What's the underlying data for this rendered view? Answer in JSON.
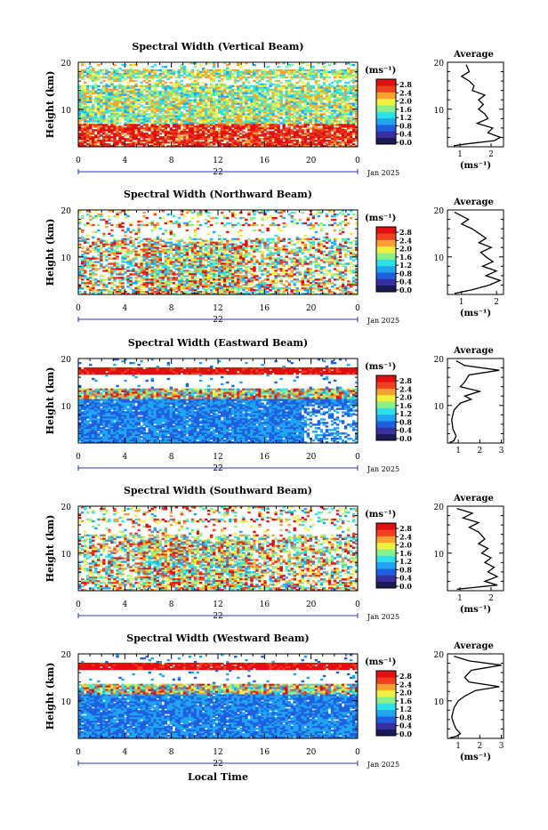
{
  "chart_data": [
    {
      "type": "heatmap",
      "title": "Spectral Width (Vertical Beam)",
      "ylabel": "Height (km)",
      "xlabel": "",
      "x_ticks": [
        "0",
        "4",
        "8",
        "12",
        "16",
        "20",
        "0"
      ],
      "x_range": [
        0,
        24
      ],
      "y_ticks": [
        "20",
        "10"
      ],
      "y_range": [
        2,
        20
      ],
      "date_day": "22",
      "date_month": "Jan 2025",
      "colorbar": {
        "unit": "(ms⁻¹)",
        "ticks": [
          "2.8",
          "2.4",
          "2.0",
          "1.6",
          "1.2",
          "0.8",
          "0.4",
          "0.0"
        ]
      },
      "average_profile": {
        "title": "Average",
        "xlabel": "(ms⁻¹)",
        "x_ticks": [
          "1",
          "2"
        ],
        "x_range": [
          0.6,
          2.4
        ],
        "y_ticks": [
          "20",
          "10"
        ],
        "points": [
          [
            1.2,
            19.5
          ],
          [
            1.3,
            18
          ],
          [
            1.05,
            17
          ],
          [
            1.3,
            16
          ],
          [
            1.45,
            15
          ],
          [
            1.4,
            14
          ],
          [
            1.8,
            13
          ],
          [
            1.6,
            12
          ],
          [
            1.75,
            11
          ],
          [
            1.6,
            10
          ],
          [
            1.8,
            9
          ],
          [
            1.9,
            8
          ],
          [
            1.55,
            7
          ],
          [
            2.05,
            6
          ],
          [
            1.9,
            5
          ],
          [
            2.3,
            4
          ],
          [
            2.1,
            3.3
          ],
          [
            1.2,
            2.6
          ],
          [
            0.8,
            2.2
          ]
        ]
      }
    },
    {
      "type": "heatmap",
      "title": "Spectral Width (Northward Beam)",
      "ylabel": "Height (km)",
      "xlabel": "",
      "x_ticks": [
        "0",
        "4",
        "8",
        "12",
        "16",
        "20",
        "0"
      ],
      "x_range": [
        0,
        24
      ],
      "y_ticks": [
        "20",
        "10"
      ],
      "y_range": [
        2,
        20
      ],
      "date_day": "22",
      "date_month": "Jan 2025",
      "colorbar": {
        "unit": "(ms⁻¹)",
        "ticks": [
          "2.8",
          "2.4",
          "2.0",
          "1.6",
          "1.2",
          "0.8",
          "0.4",
          "0.0"
        ]
      },
      "average_profile": {
        "title": "Average",
        "xlabel": "(ms⁻¹)",
        "x_ticks": [
          "1",
          "2"
        ],
        "x_range": [
          0.6,
          2.2
        ],
        "y_ticks": [
          "20",
          "10"
        ],
        "points": [
          [
            0.8,
            19.5
          ],
          [
            1.2,
            18
          ],
          [
            1.0,
            17
          ],
          [
            1.3,
            16
          ],
          [
            1.5,
            15
          ],
          [
            1.7,
            14
          ],
          [
            1.5,
            13
          ],
          [
            1.85,
            12
          ],
          [
            1.55,
            11
          ],
          [
            1.7,
            10
          ],
          [
            1.9,
            9
          ],
          [
            1.6,
            8
          ],
          [
            2.0,
            7
          ],
          [
            1.7,
            6
          ],
          [
            2.1,
            5
          ],
          [
            1.8,
            4
          ],
          [
            1.3,
            3
          ],
          [
            0.8,
            2.2
          ]
        ]
      }
    },
    {
      "type": "heatmap",
      "title": "Spectral Width (Eastward Beam)",
      "ylabel": "Height (km)",
      "xlabel": "",
      "x_ticks": [
        "0",
        "4",
        "8",
        "12",
        "16",
        "20",
        "0"
      ],
      "x_range": [
        0,
        24
      ],
      "y_ticks": [
        "20",
        "10"
      ],
      "y_range": [
        2,
        20
      ],
      "date_day": "22",
      "date_month": "Jan 2025",
      "colorbar": {
        "unit": "(ms⁻¹)",
        "ticks": [
          "2.8",
          "2.4",
          "2.0",
          "1.6",
          "1.2",
          "0.8",
          "0.4",
          "0.0"
        ]
      },
      "average_profile": {
        "title": "Average",
        "xlabel": "",
        "x_ticks": [
          "1",
          "2",
          "3"
        ],
        "x_range": [
          0.5,
          3.1
        ],
        "y_ticks": [
          "20",
          "10"
        ],
        "points": [
          [
            0.9,
            19.5
          ],
          [
            1.3,
            18.5
          ],
          [
            2.9,
            17.5
          ],
          [
            1.5,
            16.5
          ],
          [
            1.3,
            15
          ],
          [
            1.1,
            14
          ],
          [
            2.0,
            13
          ],
          [
            1.3,
            12
          ],
          [
            1.6,
            11.3
          ],
          [
            1.1,
            10.5
          ],
          [
            0.8,
            9
          ],
          [
            0.7,
            7
          ],
          [
            0.75,
            5
          ],
          [
            0.9,
            3.5
          ],
          [
            0.8,
            2.5
          ],
          [
            0.6,
            2.1
          ]
        ]
      }
    },
    {
      "type": "heatmap",
      "title": "Spectral Width (Southward Beam)",
      "ylabel": "Height (km)",
      "xlabel": "",
      "x_ticks": [
        "0",
        "4",
        "8",
        "12",
        "16",
        "20",
        "0"
      ],
      "x_range": [
        0,
        24
      ],
      "y_ticks": [
        "20",
        "10"
      ],
      "y_range": [
        2,
        20
      ],
      "date_day": "22",
      "date_month": "Jan 2025",
      "colorbar": {
        "unit": "(ms⁻¹)",
        "ticks": [
          "2.8",
          "2.4",
          "2.0",
          "1.6",
          "1.2",
          "0.8",
          "0.4",
          "0.0"
        ]
      },
      "average_profile": {
        "title": "Average",
        "xlabel": "(ms⁻¹)",
        "x_ticks": [
          "1",
          "2"
        ],
        "x_range": [
          0.6,
          2.4
        ],
        "y_ticks": [
          "20",
          "10"
        ],
        "points": [
          [
            0.9,
            19.5
          ],
          [
            1.4,
            18.5
          ],
          [
            1.1,
            17.5
          ],
          [
            1.6,
            16.5
          ],
          [
            1.3,
            15.5
          ],
          [
            1.6,
            14.5
          ],
          [
            1.8,
            13
          ],
          [
            1.6,
            12
          ],
          [
            1.9,
            11
          ],
          [
            1.7,
            10
          ],
          [
            2.0,
            9
          ],
          [
            1.8,
            8
          ],
          [
            2.1,
            7
          ],
          [
            1.9,
            6
          ],
          [
            2.2,
            5
          ],
          [
            1.8,
            4
          ],
          [
            2.2,
            3.2
          ],
          [
            0.9,
            2.3
          ]
        ]
      }
    },
    {
      "type": "heatmap",
      "title": "Spectral Width (Westward Beam)",
      "ylabel": "Height (km)",
      "xlabel": "Local Time",
      "x_ticks": [
        "0",
        "4",
        "8",
        "12",
        "16",
        "20",
        "0"
      ],
      "x_range": [
        0,
        24
      ],
      "y_ticks": [
        "20",
        "10"
      ],
      "y_range": [
        2,
        20
      ],
      "date_day": "22",
      "date_month": "Jan 2025",
      "colorbar": {
        "unit": "(ms⁻¹)",
        "ticks": [
          "2.8",
          "2.4",
          "2.0",
          "1.6",
          "1.2",
          "0.8",
          "0.4",
          "0.0"
        ]
      },
      "average_profile": {
        "title": "Average",
        "xlabel": "(ms⁻¹)",
        "x_ticks": [
          "1",
          "2",
          "3"
        ],
        "x_range": [
          0.5,
          3.1
        ],
        "y_ticks": [
          "20",
          "10"
        ],
        "points": [
          [
            0.8,
            19.5
          ],
          [
            1.5,
            18.5
          ],
          [
            3.0,
            17.6
          ],
          [
            1.6,
            16.5
          ],
          [
            1.3,
            15
          ],
          [
            1.5,
            14
          ],
          [
            2.9,
            13
          ],
          [
            1.8,
            12.2
          ],
          [
            1.3,
            11
          ],
          [
            1.0,
            10
          ],
          [
            0.8,
            8.5
          ],
          [
            0.7,
            6.5
          ],
          [
            0.8,
            5
          ],
          [
            0.9,
            4
          ],
          [
            1.1,
            3
          ],
          [
            0.9,
            2.4
          ],
          [
            0.6,
            2.1
          ]
        ]
      }
    }
  ],
  "colors": {
    "scale": [
      "#1a1a55",
      "#3a2fa0",
      "#1f5fe0",
      "#20a6f0",
      "#2ee0e8",
      "#8af08a",
      "#f0f040",
      "#f8a030",
      "#f04020",
      "#e01010"
    ],
    "axis": "#000000",
    "date_line": "#3030c0"
  }
}
